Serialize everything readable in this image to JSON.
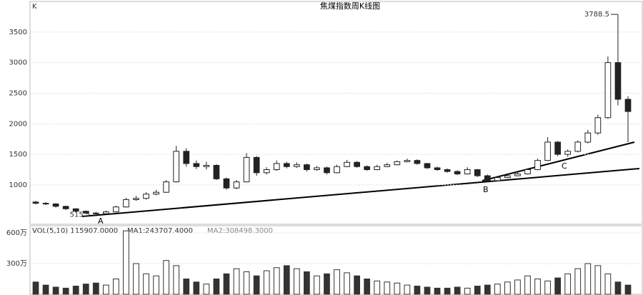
{
  "chart_data": {
    "type": "candlestick",
    "title": "焦煤指数周K线图",
    "axis_label": "K",
    "ylim": [
      380,
      3930
    ],
    "yticks": [
      1000,
      1500,
      2000,
      2500,
      3000,
      3500
    ],
    "grid": true,
    "candles": [
      [
        720,
        740,
        680,
        700
      ],
      [
        700,
        720,
        670,
        690
      ],
      [
        690,
        700,
        630,
        650
      ],
      [
        650,
        660,
        590,
        610
      ],
      [
        610,
        620,
        560,
        570
      ],
      [
        570,
        580,
        525,
        540
      ],
      [
        540,
        560,
        515.5,
        530
      ],
      [
        530,
        580,
        520,
        560
      ],
      [
        560,
        660,
        550,
        640
      ],
      [
        640,
        790,
        630,
        760
      ],
      [
        760,
        820,
        740,
        780
      ],
      [
        780,
        880,
        760,
        850
      ],
      [
        850,
        920,
        830,
        880
      ],
      [
        880,
        1080,
        870,
        1050
      ],
      [
        1050,
        1640,
        1040,
        1550
      ],
      [
        1550,
        1600,
        1300,
        1350
      ],
      [
        1350,
        1400,
        1260,
        1300
      ],
      [
        1300,
        1380,
        1250,
        1320
      ],
      [
        1320,
        1340,
        1080,
        1100
      ],
      [
        1100,
        1120,
        920,
        950
      ],
      [
        950,
        1080,
        930,
        1050
      ],
      [
        1050,
        1520,
        1040,
        1450
      ],
      [
        1450,
        1470,
        1150,
        1200
      ],
      [
        1200,
        1290,
        1170,
        1250
      ],
      [
        1250,
        1400,
        1230,
        1350
      ],
      [
        1350,
        1380,
        1270,
        1300
      ],
      [
        1300,
        1370,
        1280,
        1330
      ],
      [
        1330,
        1350,
        1220,
        1250
      ],
      [
        1250,
        1310,
        1230,
        1280
      ],
      [
        1280,
        1300,
        1170,
        1200
      ],
      [
        1200,
        1330,
        1190,
        1300
      ],
      [
        1300,
        1410,
        1290,
        1370
      ],
      [
        1370,
        1390,
        1280,
        1300
      ],
      [
        1300,
        1320,
        1230,
        1250
      ],
      [
        1250,
        1330,
        1240,
        1300
      ],
      [
        1300,
        1360,
        1290,
        1330
      ],
      [
        1330,
        1400,
        1320,
        1380
      ],
      [
        1380,
        1430,
        1370,
        1400
      ],
      [
        1400,
        1420,
        1330,
        1350
      ],
      [
        1350,
        1360,
        1260,
        1280
      ],
      [
        1280,
        1300,
        1230,
        1250
      ],
      [
        1250,
        1270,
        1200,
        1220
      ],
      [
        1220,
        1240,
        1160,
        1180
      ],
      [
        1180,
        1290,
        1170,
        1250
      ],
      [
        1250,
        1260,
        1130,
        1150
      ],
      [
        1150,
        1170,
        1050,
        1070
      ],
      [
        1070,
        1140,
        1060,
        1120
      ],
      [
        1120,
        1170,
        1110,
        1150
      ],
      [
        1150,
        1200,
        1140,
        1180
      ],
      [
        1180,
        1270,
        1170,
        1250
      ],
      [
        1250,
        1430,
        1240,
        1400
      ],
      [
        1400,
        1780,
        1390,
        1700
      ],
      [
        1700,
        1720,
        1470,
        1500
      ],
      [
        1500,
        1580,
        1460,
        1550
      ],
      [
        1550,
        1730,
        1530,
        1700
      ],
      [
        1700,
        1900,
        1680,
        1850
      ],
      [
        1850,
        2150,
        1820,
        2100
      ],
      [
        2100,
        3100,
        2080,
        3000
      ],
      [
        3000,
        3788.5,
        2300,
        2400
      ],
      [
        2400,
        2450,
        1700,
        2200
      ]
    ],
    "annotations": [
      "A",
      "B",
      "C"
    ],
    "volume": {
      "legend": [
        "VOL(5,10) 115907.0000",
        "MA1:243707.4000",
        "MA2:308498.3000"
      ],
      "ylim": [
        0,
        656
      ],
      "yticks": [
        {
          "value": 600,
          "label": "600万"
        },
        {
          "value": 300,
          "label": "300万"
        }
      ],
      "values": [
        120,
        90,
        70,
        60,
        80,
        100,
        110,
        90,
        150,
        620,
        300,
        200,
        180,
        330,
        280,
        150,
        120,
        100,
        150,
        200,
        250,
        220,
        180,
        230,
        260,
        280,
        250,
        220,
        180,
        200,
        240,
        210,
        180,
        150,
        130,
        120,
        110,
        90,
        80,
        70,
        60,
        60,
        70,
        60,
        80,
        90,
        100,
        120,
        140,
        180,
        150,
        130,
        160,
        200,
        250,
        300,
        280,
        200,
        120,
        90
      ]
    }
  }
}
